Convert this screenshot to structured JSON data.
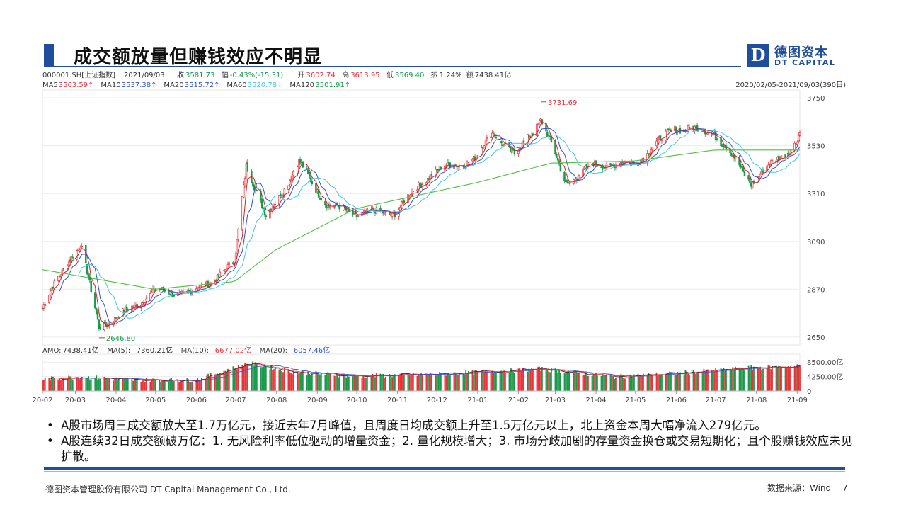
{
  "slide": {
    "title": "成交额放量但赚钱效应不明显",
    "logo_mark": "D",
    "logo_cn": "德图资本",
    "logo_en": "DT CAPITAL",
    "bullets": [
      "A股市场周三成交额放大至1.7万亿元，接近去年7月峰值，且周度日均成交额上升至1.5万亿元以上，北上资金本周大幅净流入279亿元。",
      "A股连续32日成交额破万亿：1. 无风险利率低位驱动的增量资金；2. 量化规模增大；3. 市场分歧加剧的存量资金换仓或交易短期化；且个股赚钱效应未见扩散。"
    ],
    "footer_left": "德图资本管理股份有限公司  DT Capital  Management  Co., Ltd.",
    "footer_source": "数据来源：Wind",
    "page_number": "7"
  },
  "colors": {
    "accent": "#1f4e9c",
    "up": "#e8333a",
    "down": "#1a9a4a",
    "ma5": "#cc2222",
    "ma10": "#3050d0",
    "ma20": "#40c8e8",
    "ma60": "#50c040",
    "ma120": "#888888"
  },
  "chart_data": [
    {
      "type": "candlestick",
      "header": {
        "code": "000001.SH[上证指数]",
        "date": "2021/09/03",
        "items": [
          {
            "label": "收",
            "value": "3581.73",
            "color": "#1a9a4a"
          },
          {
            "label": "幅",
            "value": "-0.43%(-15.31)",
            "color": "#1a9a4a"
          },
          {
            "label": "开",
            "value": "3602.74",
            "color": "#e8333a"
          },
          {
            "label": "高",
            "value": "3613.95",
            "color": "#e8333a"
          },
          {
            "label": "低",
            "value": "3569.40",
            "color": "#1a9a4a"
          },
          {
            "label": "振",
            "value": "1.24%",
            "color": "#333333"
          },
          {
            "label": "额",
            "value": "7438.41亿",
            "color": "#333333"
          }
        ]
      },
      "ma_legend": [
        {
          "label": "MA5",
          "value": "3563.59↑",
          "color": "#e8333a"
        },
        {
          "label": "MA10",
          "value": "3537.38↑",
          "color": "#3050d0"
        },
        {
          "label": "MA20",
          "value": "3515.72↑",
          "color": "#3050d0"
        },
        {
          "label": "MA60",
          "value": "3520.78↓",
          "color": "#40c8e8"
        },
        {
          "label": "MA120",
          "value": "3501.91↑",
          "color": "#1a9a4a"
        }
      ],
      "range_label": "2020/02/05-2021/09/03(390日)",
      "yticks": [
        3750,
        3530,
        3310,
        3090,
        2870,
        2650
      ],
      "ylim": [
        2630,
        3770
      ],
      "annotations": [
        {
          "text": "3731.69",
          "x": "2021-02-18",
          "y": 3731.69,
          "color": "#e8333a"
        },
        {
          "text": "2646.80",
          "x": "2020-03-19",
          "y": 2646.8,
          "color": "#1a9a4a"
        }
      ],
      "close_anchors": [
        [
          "2020-02-05",
          2783
        ],
        [
          "2020-02-25",
          3013
        ],
        [
          "2020-03-05",
          3071
        ],
        [
          "2020-03-19",
          2702
        ],
        [
          "2020-04-01",
          2735
        ],
        [
          "2020-04-30",
          2860
        ],
        [
          "2020-05-29",
          2852
        ],
        [
          "2020-06-30",
          2985
        ],
        [
          "2020-07-09",
          3450
        ],
        [
          "2020-07-24",
          3197
        ],
        [
          "2020-08-18",
          3451
        ],
        [
          "2020-09-09",
          3255
        ],
        [
          "2020-09-30",
          3218
        ],
        [
          "2020-10-30",
          3225
        ],
        [
          "2020-11-27",
          3408
        ],
        [
          "2020-12-31",
          3473
        ],
        [
          "2021-01-13",
          3598
        ],
        [
          "2021-01-29",
          3483
        ],
        [
          "2021-02-18",
          3655
        ],
        [
          "2021-03-09",
          3360
        ],
        [
          "2021-03-31",
          3442
        ],
        [
          "2021-04-30",
          3447
        ],
        [
          "2021-05-31",
          3615
        ],
        [
          "2021-06-30",
          3591
        ],
        [
          "2021-07-28",
          3362
        ],
        [
          "2021-08-31",
          3544
        ],
        [
          "2021-09-03",
          3582
        ]
      ],
      "ma60_anchors": [
        [
          "2020-02-05",
          2960
        ],
        [
          "2020-04-30",
          2870
        ],
        [
          "2020-06-30",
          2905
        ],
        [
          "2020-07-31",
          3050
        ],
        [
          "2020-09-30",
          3240
        ],
        [
          "2020-12-31",
          3360
        ],
        [
          "2021-02-26",
          3450
        ],
        [
          "2021-04-30",
          3460
        ],
        [
          "2021-06-30",
          3510
        ],
        [
          "2021-09-03",
          3510
        ]
      ],
      "ma120_anchors": [
        [
          "2020-06-01",
          2920
        ],
        [
          "2020-07-31",
          2940
        ],
        [
          "2020-09-30",
          3150
        ],
        [
          "2020-12-31",
          3330
        ],
        [
          "2021-03-31",
          3410
        ],
        [
          "2021-06-30",
          3490
        ],
        [
          "2021-09-03",
          3500
        ]
      ]
    },
    {
      "type": "bar",
      "legend": [
        {
          "label": "AMO:",
          "value": "7438.41亿",
          "color": "#222222"
        },
        {
          "label": "MA(5):",
          "value": "7360.21亿",
          "color": "#222222"
        },
        {
          "label": "MA(10):",
          "value": "6677.02亿",
          "color": "#e8333a"
        },
        {
          "label": "MA(20):",
          "value": "6057.46亿",
          "color": "#3050d0"
        }
      ],
      "yticks": [
        "8500.00亿",
        "4250.00亿",
        "0"
      ],
      "ylim": [
        0,
        10000
      ],
      "unit": "亿",
      "amount_anchors": [
        [
          "2020-02-05",
          3500
        ],
        [
          "2020-03-05",
          4200
        ],
        [
          "2020-04-15",
          3200
        ],
        [
          "2020-06-01",
          3300
        ],
        [
          "2020-07-06",
          7500
        ],
        [
          "2020-07-10",
          8300
        ],
        [
          "2020-08-14",
          5600
        ],
        [
          "2020-09-30",
          4400
        ],
        [
          "2020-11-30",
          4900
        ],
        [
          "2021-01-13",
          5800
        ],
        [
          "2021-02-18",
          6500
        ],
        [
          "2021-04-15",
          4200
        ],
        [
          "2021-06-01",
          5200
        ],
        [
          "2021-07-26",
          6800
        ],
        [
          "2021-08-31",
          7200
        ],
        [
          "2021-09-03",
          7438
        ]
      ],
      "x_tick_labels": [
        "20-02",
        "20-03",
        "20-04",
        "20-05",
        "20-06",
        "20-07",
        "20-08",
        "20-09",
        "20-10",
        "20-11",
        "20-12",
        "21-01",
        "21-02",
        "21-03",
        "21-04",
        "21-05",
        "21-06",
        "21-07",
        "21-08",
        "21-09"
      ]
    }
  ]
}
